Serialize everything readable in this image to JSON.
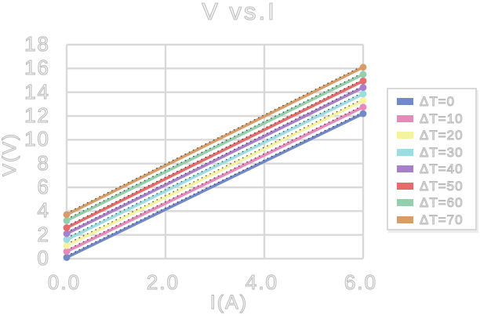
{
  "chart_data": {
    "type": "line",
    "title": "V vs.I",
    "xlabel": "I(A)",
    "ylabel": "V(V)",
    "xlim": [
      0,
      6
    ],
    "ylim": [
      0,
      18
    ],
    "x_tick_values": [
      0,
      2,
      4,
      6
    ],
    "x_ticks": [
      "0.0",
      "2.0",
      "4.0",
      "6.0"
    ],
    "y_tick_values": [
      0,
      2,
      4,
      6,
      8,
      10,
      12,
      14,
      16,
      18
    ],
    "y_ticks": [
      "0",
      "2",
      "4",
      "6",
      "8",
      "10",
      "12",
      "14",
      "16",
      "18"
    ],
    "grid": true,
    "legend_position": "right",
    "marker_style": "circle-at-endpoints",
    "trendline_style": "black-dotted-overlay",
    "x": [
      0,
      6
    ],
    "series": [
      {
        "name": "ΔT=0",
        "color": "#7289c9",
        "values": [
          0.1,
          12.2
        ]
      },
      {
        "name": "ΔT=10",
        "color": "#e889bb",
        "values": [
          0.6,
          12.75
        ]
      },
      {
        "name": "ΔT=20",
        "color": "#f6f3a0",
        "values": [
          1.1,
          13.3
        ]
      },
      {
        "name": "ΔT=30",
        "color": "#9cdde2",
        "values": [
          1.6,
          13.85
        ]
      },
      {
        "name": "ΔT=40",
        "color": "#a87fc9",
        "values": [
          2.1,
          14.4
        ]
      },
      {
        "name": "ΔT=50",
        "color": "#e66c6c",
        "values": [
          2.6,
          14.95
        ]
      },
      {
        "name": "ΔT=60",
        "color": "#92cfaa",
        "values": [
          3.2,
          15.5
        ]
      },
      {
        "name": "ΔT=70",
        "color": "#d79d69",
        "values": [
          3.7,
          16.1
        ]
      }
    ]
  },
  "colors": {
    "background": "#ffffff",
    "gridline": "#d9d9d9",
    "legend_border": "#d9d9d9",
    "text_stroke": "#b7b7b7",
    "text_fill": "#fbfbfb",
    "trendline": "#1a1a1a"
  }
}
